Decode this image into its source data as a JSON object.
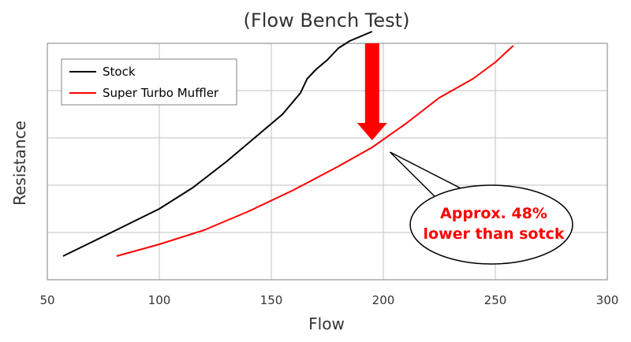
{
  "chart_data": {
    "type": "line",
    "title": "(Flow Bench Test)",
    "xlabel": "Flow",
    "ylabel": "Resistance",
    "xlim": [
      50,
      300
    ],
    "ylim": [
      0,
      10
    ],
    "xticks": [
      "50",
      "100",
      "150",
      "200",
      "250",
      "300"
    ],
    "grid": true,
    "y_tick_labels_shown": false,
    "legend_position": "top-left",
    "series": [
      {
        "name": "Stock",
        "color": "#000000",
        "x": [
          57,
          70,
          85,
          100,
          115,
          130,
          145,
          155,
          163,
          166,
          170,
          175,
          180,
          185,
          190,
          195
        ],
        "y": [
          1.0,
          1.6,
          2.3,
          3.0,
          3.9,
          5.0,
          6.2,
          7.0,
          7.9,
          8.5,
          8.9,
          9.3,
          9.8,
          10.1,
          10.3,
          10.5
        ]
      },
      {
        "name": "Super Turbo Muffler",
        "color": "#ff0000",
        "x": [
          81,
          100,
          120,
          140,
          160,
          180,
          195,
          210,
          225,
          240,
          250,
          258
        ],
        "y": [
          1.0,
          1.5,
          2.1,
          2.9,
          3.8,
          4.8,
          5.6,
          6.6,
          7.7,
          8.5,
          9.2,
          9.9
        ]
      }
    ],
    "annotations": {
      "callout_line1": "Approx. 48%",
      "callout_line2": "lower than sotck",
      "callout_color": "#ff0000",
      "arrow_color": "#ff0000",
      "arrow_x": 195,
      "arrow_y_top": 10.0,
      "arrow_y_bottom": 5.9,
      "pointer_target": [
        203,
        5.4
      ]
    }
  }
}
